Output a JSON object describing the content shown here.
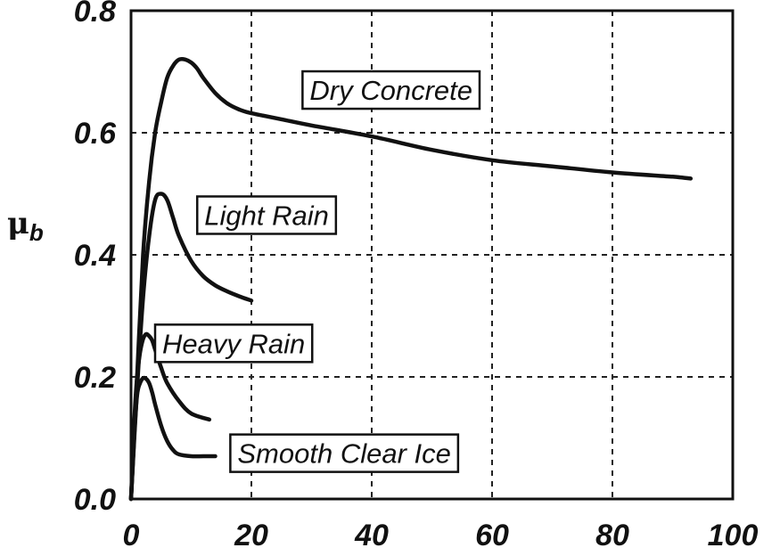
{
  "chart_data": {
    "type": "line",
    "title": "",
    "xlabel": "",
    "ylabel": "μ",
    "ylabel_subscript": "b",
    "xlim": [
      0,
      100
    ],
    "ylim": [
      0,
      0.8
    ],
    "xticks": [
      0,
      20,
      40,
      60,
      80,
      100
    ],
    "xtick_labels": [
      "0",
      "20",
      "40",
      "60",
      "80",
      "100"
    ],
    "yticks": [
      0,
      0.2,
      0.4,
      0.6,
      0.8
    ],
    "ytick_labels": [
      "0.0",
      "0.2",
      "0.4",
      "0.6",
      "0.8"
    ],
    "grid": true,
    "legend": "none",
    "series": [
      {
        "name": "Dry Concrete",
        "x": [
          0,
          1,
          2,
          3,
          4,
          5,
          6,
          7,
          8,
          9,
          10,
          11,
          12,
          14,
          16,
          18,
          20,
          25,
          30,
          40,
          50,
          60,
          70,
          80,
          90,
          93
        ],
        "y": [
          0,
          0.2,
          0.4,
          0.52,
          0.6,
          0.65,
          0.69,
          0.71,
          0.72,
          0.72,
          0.715,
          0.705,
          0.69,
          0.665,
          0.648,
          0.638,
          0.632,
          0.622,
          0.612,
          0.594,
          0.572,
          0.555,
          0.545,
          0.535,
          0.528,
          0.525
        ]
      },
      {
        "name": "Light Rain",
        "x": [
          0,
          1,
          2,
          3,
          4,
          5,
          6,
          7,
          8,
          10,
          12,
          14,
          16,
          18,
          20
        ],
        "y": [
          0,
          0.18,
          0.33,
          0.43,
          0.49,
          0.5,
          0.49,
          0.46,
          0.43,
          0.39,
          0.365,
          0.35,
          0.34,
          0.332,
          0.325
        ]
      },
      {
        "name": "Heavy Rain",
        "x": [
          0,
          0.5,
          1,
          1.5,
          2,
          2.5,
          3,
          3.5,
          4,
          5,
          6,
          8,
          10,
          13
        ],
        "y": [
          0,
          0.12,
          0.2,
          0.24,
          0.262,
          0.27,
          0.267,
          0.26,
          0.245,
          0.215,
          0.19,
          0.16,
          0.14,
          0.13
        ]
      },
      {
        "name": "Smooth Clear Ice",
        "x": [
          0,
          0.5,
          1,
          1.5,
          2,
          2.5,
          3,
          3.5,
          4,
          5,
          6,
          7,
          8,
          10,
          12,
          14
        ],
        "y": [
          0,
          0.1,
          0.17,
          0.19,
          0.198,
          0.197,
          0.19,
          0.175,
          0.155,
          0.12,
          0.095,
          0.08,
          0.073,
          0.07,
          0.07,
          0.07
        ]
      }
    ]
  },
  "colors": {
    "line": "#111111",
    "background": "#ffffff"
  }
}
